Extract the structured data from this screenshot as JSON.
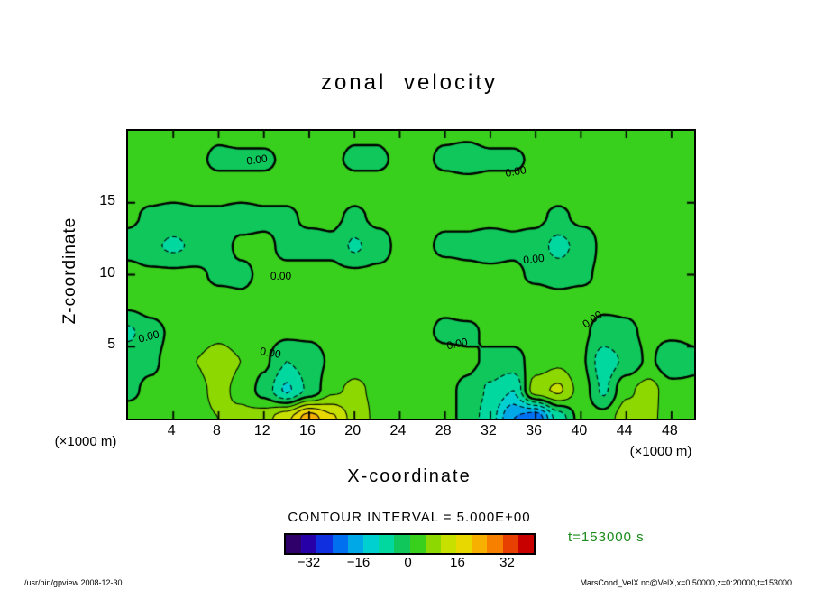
{
  "meta": {
    "footer_left": "/usr/bin/gpview  2008-12-30",
    "footer_right": "MarsCond_VelX.nc@VelX,x=0:50000,z=0:20000,t=153000"
  },
  "chart_data": {
    "type": "heatmap",
    "title": "zonal velocity",
    "xlabel": "X-coordinate",
    "ylabel": "Z-coordinate",
    "x_unit_label": "(×1000 m)",
    "y_unit_label": "(×1000 m)",
    "xlim": [
      0,
      50
    ],
    "ylim": [
      0,
      20
    ],
    "x_ticks": [
      4,
      8,
      12,
      16,
      20,
      24,
      28,
      32,
      36,
      40,
      44,
      48
    ],
    "y_ticks": [
      5,
      10,
      15
    ],
    "grid_on": false,
    "contour_interval": 5.0,
    "contour_interval_label": "CONTOUR INTERVAL = 5.000E+00",
    "contour_levels_solid": [
      0,
      5,
      10,
      15,
      20,
      25
    ],
    "contour_levels_dashed": [
      -5,
      -10,
      -15,
      -20,
      -25
    ],
    "time_label": {
      "text": "t=153000 s",
      "color": "#1a8a1a"
    },
    "colorbar": {
      "min": -40,
      "max": 40,
      "interval": 5,
      "tick_values": [
        -32,
        -16,
        0,
        16,
        32
      ],
      "tick_labels": [
        "−32",
        "−16",
        "0",
        "16",
        "32"
      ],
      "colors": [
        "#30006a",
        "#2800a8",
        "#1030e0",
        "#0070f0",
        "#00a8e8",
        "#00d0d0",
        "#00d8a0",
        "#0fc75a",
        "#38cf1d",
        "#8cd800",
        "#c8e000",
        "#e8d800",
        "#f8b000",
        "#f88000",
        "#e84000",
        "#c80000"
      ]
    },
    "grid": {
      "x": [
        0,
        2,
        4,
        6,
        8,
        10,
        12,
        14,
        16,
        18,
        20,
        22,
        24,
        26,
        28,
        30,
        32,
        34,
        36,
        38,
        40,
        42,
        44,
        46,
        48,
        50
      ],
      "z": [
        0,
        2,
        4,
        6,
        8,
        10,
        12,
        14,
        16,
        18,
        20
      ],
      "values": [
        [
          2,
          2,
          3,
          4,
          5,
          6,
          8,
          14,
          23,
          16,
          8,
          4,
          3,
          2,
          2,
          -2,
          -8,
          -20,
          -24,
          -8,
          2,
          2,
          8,
          6,
          3,
          2
        ],
        [
          -1,
          1,
          2,
          4,
          6,
          4,
          -2,
          -11,
          -4,
          4,
          6,
          4,
          2,
          1,
          1,
          -1,
          -6,
          -10,
          8,
          11,
          3,
          -6,
          4,
          7,
          2,
          1
        ],
        [
          -2,
          -1,
          2,
          5,
          7,
          5,
          1,
          -5,
          -3,
          1,
          3,
          3,
          2,
          2,
          2,
          1,
          -1,
          -2,
          2,
          4,
          1,
          -8,
          -4,
          1,
          -4,
          -1
        ],
        [
          -6,
          -2,
          1,
          3,
          4,
          3,
          2,
          1,
          1,
          2,
          2,
          2,
          1,
          1,
          -1,
          -1,
          1,
          2,
          2,
          2,
          1,
          -2,
          -1,
          1,
          1,
          1
        ],
        [
          1,
          2,
          3,
          3,
          2,
          1,
          2,
          3,
          3,
          2,
          2,
          3,
          2,
          1,
          1,
          2,
          2,
          3,
          3,
          2,
          2,
          1,
          1,
          2,
          2,
          2
        ],
        [
          2,
          1,
          1,
          1,
          -1,
          -1,
          1,
          1,
          2,
          1,
          1,
          1,
          1,
          2,
          2,
          1,
          1,
          1,
          -1,
          -2,
          -1,
          1,
          2,
          2,
          2,
          2
        ],
        [
          -2,
          -4,
          -6,
          -4,
          -2,
          1,
          1,
          -1,
          -2,
          -1,
          -6,
          -2,
          1,
          1,
          -1,
          -1,
          -2,
          -1,
          -2,
          -7,
          -3,
          1,
          1,
          1,
          1,
          1
        ],
        [
          1,
          -1,
          -2,
          -1,
          -1,
          -2,
          -1,
          -1,
          1,
          1,
          -1,
          1,
          1,
          1,
          1,
          1,
          1,
          1,
          1,
          -1,
          1,
          1,
          1,
          1,
          1,
          1
        ],
        [
          2,
          2,
          2,
          2,
          2,
          2,
          2,
          2,
          3,
          3,
          2,
          2,
          2,
          2,
          2,
          2,
          2,
          2,
          2,
          2,
          2,
          2,
          2,
          2,
          2,
          2
        ],
        [
          2,
          2,
          2,
          1,
          -1,
          -1,
          -1,
          1,
          2,
          1,
          -1,
          -1,
          1,
          1,
          -1,
          -2,
          -1,
          -1,
          1,
          2,
          2,
          2,
          1,
          1,
          2,
          2
        ],
        [
          3,
          3,
          2,
          2,
          1,
          2,
          2,
          2,
          3,
          2,
          1,
          1,
          2,
          1,
          1,
          1,
          2,
          2,
          2,
          3,
          3,
          3,
          2,
          2,
          3,
          3
        ]
      ]
    },
    "zero_contour_labels": [
      {
        "text": "0.00",
        "x": 11.4,
        "z": 18.0,
        "rot": -8
      },
      {
        "text": "0.00",
        "x": 34.2,
        "z": 17.2,
        "rot": -10
      },
      {
        "text": "0.00",
        "x": 13.5,
        "z": 9.9,
        "rot": 0
      },
      {
        "text": "0.00",
        "x": 35.8,
        "z": 11.1,
        "rot": -6
      },
      {
        "text": "0.00",
        "x": 1.8,
        "z": 5.7,
        "rot": -15
      },
      {
        "text": "0.00",
        "x": 12.6,
        "z": 4.6,
        "rot": 10
      },
      {
        "text": "0.00",
        "x": 29.1,
        "z": 5.2,
        "rot": -12
      },
      {
        "text": "0.00",
        "x": 41.0,
        "z": 6.9,
        "rot": -35
      }
    ]
  }
}
